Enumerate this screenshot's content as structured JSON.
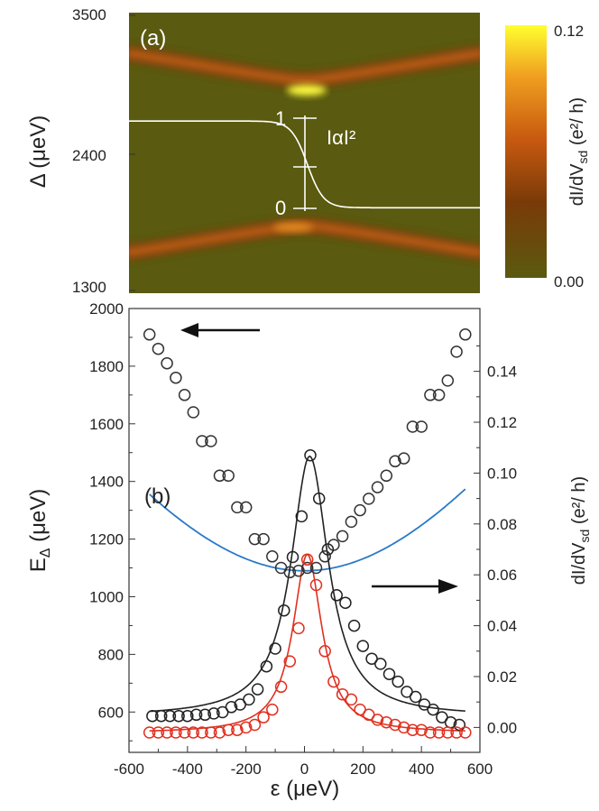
{
  "chart_data": [
    {
      "type": "heatmap",
      "panel_label": "(a)",
      "ylabel": "Δ (μeV)",
      "y_ticks": [
        "3500",
        "2400",
        "1300"
      ],
      "ylim": [
        1300,
        3500
      ],
      "xlim": [
        -600,
        600
      ],
      "annotation": "IαI²",
      "scale_labels": [
        "1",
        "0"
      ],
      "colorbar": {
        "label": "dI/dV_sd (e²/ h)",
        "ticks": [
          "0.12",
          "0.00"
        ],
        "range": [
          0.0,
          0.12
        ]
      },
      "background_color": "#5a5a10",
      "bands": [
        {
          "name": "upper",
          "center_delta": 2900,
          "min_gap": 70
        },
        {
          "name": "lower",
          "center_delta": 1900,
          "min_gap": 70
        }
      ],
      "white_curve": {
        "left_delta": 2650,
        "right_delta": 1970,
        "mid_x": 10
      }
    },
    {
      "type": "scatter",
      "panel_label": "(b)",
      "xlabel": "ε (μeV)",
      "ylabel_left": "E_Δ (μeV)",
      "ylabel_right": "dI/dV_sd (e²/ h)",
      "xlim": [
        -600,
        600
      ],
      "ylim_left": [
        460,
        2000
      ],
      "ylim_right": [
        -0.0098,
        0.1647
      ],
      "x_ticks": [
        -600,
        -400,
        -200,
        0,
        200,
        400,
        600
      ],
      "x_tick_labels": [
        "-600",
        "-400",
        "-200",
        "0",
        "200",
        "400",
        "600"
      ],
      "y_ticks_left": [
        600,
        800,
        1000,
        1200,
        1400,
        1600,
        1800,
        2000
      ],
      "y_tick_labels_left": [
        "600",
        "800",
        "1000",
        "1200",
        "1400",
        "1600",
        "1800",
        "2000"
      ],
      "y_ticks_right": [
        0.0,
        0.02,
        0.04,
        0.06,
        0.08,
        0.1,
        0.12,
        0.14
      ],
      "y_tick_labels_right": [
        "0.00",
        "0.02",
        "0.04",
        "0.06",
        "0.08",
        "0.10",
        "0.12",
        "0.14"
      ],
      "series": [
        {
          "name": "E_Δ",
          "axis": "left",
          "color": "#2a7ac8",
          "marker_color": "#333333",
          "x": [
            -530,
            -500,
            -470,
            -440,
            -410,
            -380,
            -350,
            -320,
            -290,
            -260,
            -230,
            -200,
            -170,
            -140,
            -110,
            -80,
            -50,
            -20,
            10,
            40,
            70,
            100,
            130,
            160,
            190,
            220,
            250,
            280,
            310,
            340,
            370,
            400,
            430,
            460,
            490,
            520,
            550
          ],
          "values": [
            1910,
            1860,
            1810,
            1760,
            1700,
            1640,
            1540,
            1540,
            1420,
            1420,
            1310,
            1310,
            1200,
            1200,
            1140,
            1100,
            1085,
            1090,
            1100,
            1100,
            1140,
            1180,
            1210,
            1260,
            1300,
            1340,
            1380,
            1420,
            1470,
            1480,
            1590,
            1590,
            1700,
            1700,
            1750,
            1850,
            1910
          ]
        },
        {
          "name": "dI/dV_sd (black)",
          "axis": "right",
          "color": "#222222",
          "x": [
            -520,
            -490,
            -460,
            -430,
            -400,
            -370,
            -340,
            -310,
            -280,
            -250,
            -220,
            -190,
            -160,
            -130,
            -100,
            -70,
            -40,
            -10,
            20,
            50,
            80,
            110,
            140,
            170,
            200,
            230,
            260,
            290,
            320,
            350,
            380,
            410,
            440,
            470,
            500,
            530
          ],
          "values": [
            0.0045,
            0.0045,
            0.0045,
            0.0045,
            0.0045,
            0.005,
            0.005,
            0.0055,
            0.006,
            0.008,
            0.009,
            0.011,
            0.015,
            0.024,
            0.031,
            0.046,
            0.067,
            0.083,
            0.107,
            0.09,
            0.07,
            0.052,
            0.049,
            0.04,
            0.032,
            0.027,
            0.025,
            0.021,
            0.018,
            0.014,
            0.012,
            0.009,
            0.007,
            0.004,
            0.002,
            0.001
          ]
        },
        {
          "name": "dI/dV_sd (red)",
          "axis": "right",
          "color": "#e03020",
          "x": [
            -530,
            -500,
            -470,
            -440,
            -410,
            -380,
            -350,
            -320,
            -290,
            -260,
            -230,
            -200,
            -170,
            -140,
            -110,
            -80,
            -50,
            -20,
            10,
            40,
            70,
            100,
            130,
            160,
            190,
            220,
            250,
            280,
            310,
            340,
            370,
            400,
            430,
            460,
            490,
            520,
            550
          ],
          "values": [
            -0.002,
            -0.002,
            -0.002,
            -0.002,
            -0.002,
            -0.002,
            -0.002,
            -0.002,
            -0.002,
            -0.001,
            -0.001,
            0.0,
            0.001,
            0.004,
            0.007,
            0.016,
            0.026,
            0.039,
            0.066,
            0.056,
            0.03,
            0.018,
            0.013,
            0.011,
            0.007,
            0.005,
            0.003,
            0.002,
            0.001,
            0.0,
            -0.001,
            -0.001,
            -0.002,
            -0.002,
            -0.002,
            -0.002,
            -0.002
          ]
        }
      ],
      "fit_curves": {
        "edelta": {
          "min": 1090,
          "center": 0,
          "slope": 1.52
        },
        "black": {
          "peak": 0.1066,
          "width": 78,
          "baseline": 0.0043
        },
        "red": {
          "peak": 0.068,
          "width": 60,
          "baseline": -0.0022
        }
      },
      "arrows": [
        "left-axis",
        "right-axis"
      ]
    }
  ]
}
